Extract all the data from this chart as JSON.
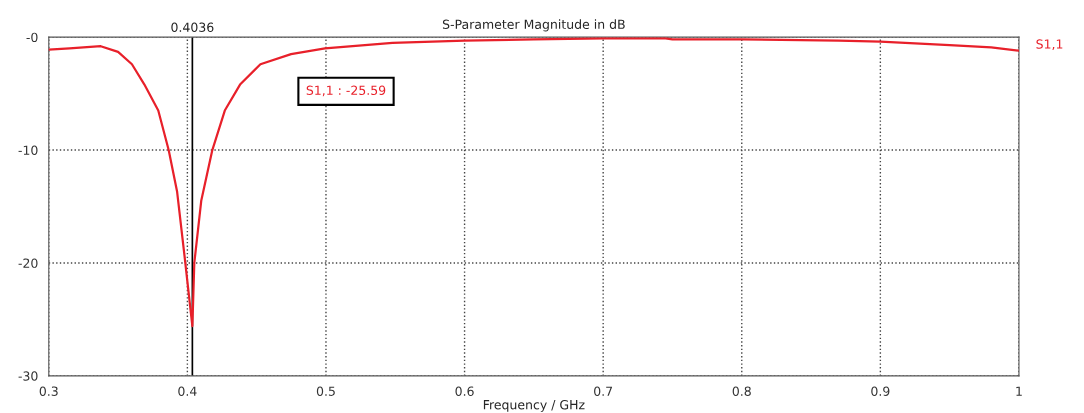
{
  "chart_data": {
    "type": "line",
    "title": "S-Parameter Magnitude in dB",
    "xlabel": "Frequency / GHz",
    "xlim": [
      0.3,
      1
    ],
    "xticks": [
      0.3,
      0.4,
      0.5,
      0.6,
      0.7,
      0.8,
      0.9,
      1
    ],
    "ylim": [
      -30,
      0
    ],
    "yticks": [
      {
        "value": 0,
        "label": "-0"
      },
      -10,
      -20,
      -30
    ],
    "grid": true,
    "legend": false,
    "line_style": "solid",
    "marker": "none",
    "series": [
      {
        "name": "S1,1",
        "color": "#e8202a",
        "x": [
          0.3,
          0.315,
          0.3375,
          0.35,
          0.36,
          0.369,
          0.379,
          0.3865,
          0.3926,
          0.3975,
          0.4036,
          0.405,
          0.41,
          0.418,
          0.427,
          0.438,
          0.4527,
          0.4748,
          0.4993,
          0.548,
          0.6,
          0.65,
          0.7,
          0.745,
          0.75,
          0.8,
          0.87,
          0.9,
          0.95,
          0.98,
          1.0
        ],
        "values": [
          -1.1,
          -1.0,
          -0.8,
          -1.3,
          -2.4,
          -4.2,
          -6.5,
          -10,
          -13.7,
          -18.9,
          -25.59,
          -20,
          -14.5,
          -10,
          -6.5,
          -4.2,
          -2.4,
          -1.5,
          -1.0,
          -0.5,
          -0.3,
          -0.2,
          -0.1,
          -0.1,
          -0.2,
          -0.2,
          -0.3,
          -0.4,
          -0.7,
          -0.9,
          -1.2
        ]
      }
    ],
    "ref_lines": [
      {
        "axis": "x",
        "value": 0.4036,
        "label": "0.4036",
        "color": "#000000"
      }
    ],
    "annotations": [
      "S1,1 : -25.59"
    ]
  }
}
